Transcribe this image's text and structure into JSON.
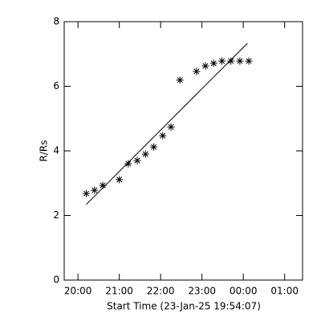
{
  "chart_data": {
    "type": "scatter",
    "xlabel": "Start Time (23-Jan-25 19:54:07)",
    "ylabel": "R/Rs",
    "xlim": [
      "19:40",
      "01:26"
    ],
    "xticks": [
      "20:00",
      "21:00",
      "22:00",
      "23:00",
      "00:00",
      "01:00"
    ],
    "ylim": [
      0,
      8
    ],
    "yticks": [
      0,
      2,
      4,
      6,
      8
    ],
    "color": "#000000",
    "series": [
      {
        "marker": "asterisk",
        "x": [
          "20:12",
          "20:24",
          "20:36",
          "21:00",
          "21:13",
          "21:26",
          "21:38",
          "21:50",
          "22:03",
          "22:15",
          "22:28",
          "22:52",
          "23:05",
          "23:17",
          "23:29",
          "23:42",
          "23:55",
          "00:08"
        ],
        "values": [
          2.68,
          2.78,
          2.93,
          3.11,
          3.6,
          3.7,
          3.9,
          4.12,
          4.47,
          4.74,
          6.19,
          6.46,
          6.63,
          6.71,
          6.78,
          6.78,
          6.78,
          6.78
        ]
      },
      {
        "marker": "line",
        "x": [
          "20:12",
          "00:06"
        ],
        "values": [
          2.34,
          7.33
        ]
      }
    ]
  }
}
